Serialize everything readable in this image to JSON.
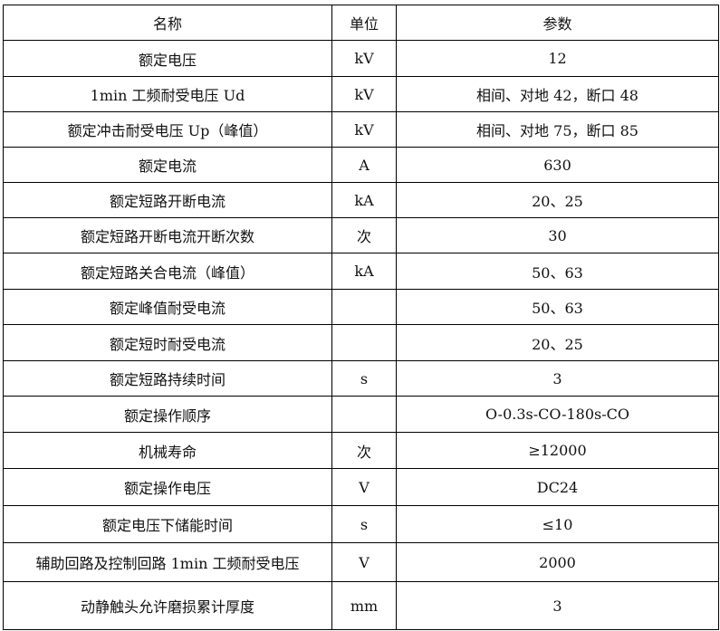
{
  "table": {
    "headers": [
      "名称",
      "单位",
      "参数"
    ],
    "rows": [
      [
        "额定电压",
        "kV",
        "12"
      ],
      [
        "1min 工频耐受电压 Ud",
        "kV",
        "相间、对地 42，断口 48"
      ],
      [
        "额定冲击耐受电压 Up（峰值）",
        "kV",
        "相间、对地 75，断口 85"
      ],
      [
        "额定电流",
        "A",
        "630"
      ],
      [
        "额定短路开断电流",
        "kA",
        "20、25"
      ],
      [
        "额定短路开断电流开断次数",
        "次",
        "30"
      ],
      [
        "额定短路关合电流（峰值）",
        "kA",
        "50、63"
      ],
      [
        "额定峰值耐受电流",
        "",
        "50、63"
      ],
      [
        "额定短时耐受电流",
        "",
        "20、25"
      ],
      [
        "额定短路持续时间",
        "s",
        "3"
      ],
      [
        "额定操作顺序",
        "",
        "O-0.3s-CO-180s-CO"
      ],
      [
        "机械寿命",
        "次",
        "≥12000"
      ],
      [
        "额定操作电压",
        "V",
        "DC24"
      ],
      [
        "额定电压下储能时间",
        "s",
        "≤10"
      ],
      [
        "辅助回路及控制回路 1min 工频耐受电压",
        "V",
        "2000"
      ],
      [
        "动静触头允许磨损累计厚度",
        "mm",
        "3"
      ]
    ]
  }
}
